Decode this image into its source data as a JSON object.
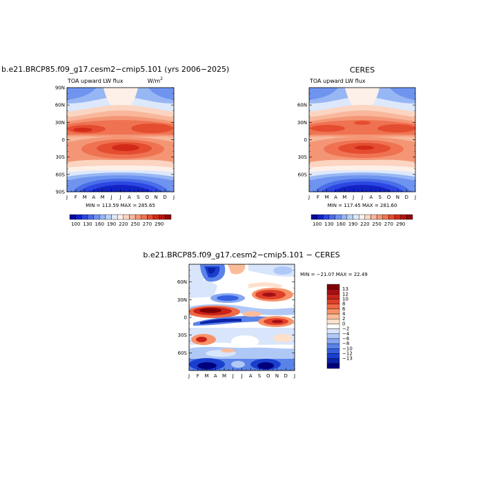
{
  "chart_data": [
    {
      "type": "heatmap",
      "title": "b.e21.BRCP85.f09_g17.cesm2−cmip5.101 (yrs 2006−2025)",
      "subtitle_left": "TOA upward LW flux",
      "units": "W/m",
      "units_sup": "2",
      "x_ticks": [
        "J",
        "F",
        "M",
        "A",
        "M",
        "J",
        "J",
        "A",
        "S",
        "O",
        "N",
        "D",
        "J"
      ],
      "y_ticks": [
        "90N",
        "60N",
        "30N",
        "0",
        "30S",
        "60S",
        "90S"
      ],
      "stats": "MIN = 113.59 MAX = 285.65",
      "colorbar": {
        "levels": [
          "100",
          "130",
          "160",
          "190",
          "220",
          "250",
          "270",
          "290"
        ],
        "colors": [
          "#08089c",
          "#1222c4",
          "#2c46e2",
          "#4a6ee8",
          "#6f94ef",
          "#97b6f4",
          "#bcd2f8",
          "#dde8fb",
          "#fdf0e8",
          "#fbd5c2",
          "#f8b79b",
          "#f49676",
          "#ef7352",
          "#e54d30",
          "#d22a18",
          "#b5150e",
          "#8e0808"
        ]
      },
      "grid": false
    },
    {
      "type": "heatmap",
      "title": "CERES",
      "subtitle_left": "TOA upward LW flux",
      "x_ticks": [
        "J",
        "F",
        "M",
        "A",
        "M",
        "J",
        "J",
        "A",
        "S",
        "O",
        "N",
        "D",
        "J"
      ],
      "y_ticks": [
        "60N",
        "30N",
        "0",
        "30S",
        "60S"
      ],
      "stats": "MIN = 117.45 MAX = 281.60",
      "colorbar": {
        "levels": [
          "100",
          "130",
          "160",
          "190",
          "220",
          "250",
          "270",
          "290"
        ]
      },
      "grid": false
    },
    {
      "type": "heatmap",
      "title": "b.e21.BRCP85.f09_g17.cesm2−cmip5.101 − CERES",
      "x_ticks": [
        "J",
        "F",
        "M",
        "A",
        "M",
        "J",
        "J",
        "A",
        "S",
        "O",
        "N",
        "D",
        "J"
      ],
      "y_ticks": [
        "60N",
        "30N",
        "0",
        "30S",
        "60S"
      ],
      "stats": "MIN = −21.07 MAX =  22.49",
      "colorbar": {
        "levels": [
          "13",
          "12",
          "10",
          "8",
          "6",
          "4",
          "2",
          "0",
          "−2",
          "−4",
          "−6",
          "−8",
          "−10",
          "−12",
          "−13"
        ],
        "colors": [
          "#800000",
          "#a50f15",
          "#c8221a",
          "#e0402a",
          "#ef6a45",
          "#f7936a",
          "#fbbc99",
          "#fde0cc",
          "#ffffff",
          "#d9e5fb",
          "#b0c8f6",
          "#86a7f0",
          "#5a83ea",
          "#3560e0",
          "#1a3fcf",
          "#0b22a8",
          "#00007c"
        ]
      },
      "grid": false
    }
  ]
}
